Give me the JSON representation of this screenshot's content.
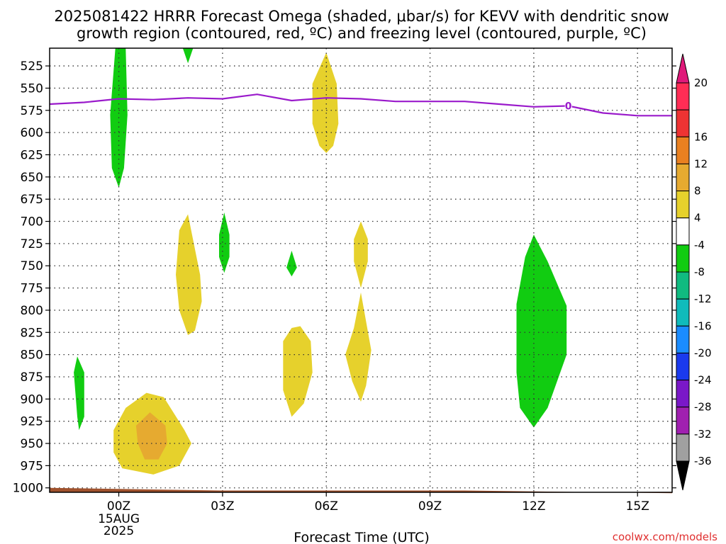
{
  "chart_data": {
    "type": "heatmap",
    "title_lines": [
      "2025081422 HRRR Forecast Omega (shaded, μbar/s) for KEVV with dendritic snow",
      "growth region (contoured, red, ºC) and freezing level (contoured, purple, ºC)"
    ],
    "xlabel": "Forecast Time (UTC)",
    "credit": "coolwx.com/models",
    "x_range_hours": [
      -2,
      16
    ],
    "y_range_mb": [
      1005,
      505
    ],
    "x_ticks": [
      {
        "hour": 0,
        "label": "00Z",
        "sub": [
          "15AUG",
          "2025"
        ]
      },
      {
        "hour": 3,
        "label": "03Z"
      },
      {
        "hour": 6,
        "label": "06Z"
      },
      {
        "hour": 9,
        "label": "09Z"
      },
      {
        "hour": 12,
        "label": "12Z"
      },
      {
        "hour": 15,
        "label": "15Z"
      }
    ],
    "y_ticks": [
      525,
      550,
      575,
      600,
      625,
      650,
      675,
      700,
      725,
      750,
      775,
      800,
      825,
      850,
      875,
      900,
      925,
      950,
      975,
      1000
    ],
    "colorbar": {
      "ticks": [
        "20",
        "16",
        "12",
        "8",
        "4",
        "-4",
        "-8",
        "-12",
        "-16",
        "-20",
        "-24",
        "-28",
        "-32",
        "-36"
      ],
      "colors_top_to_bottom": [
        "#ff2d55",
        "#ee3333",
        "#e98020",
        "#e6aa30",
        "#e6d12c",
        "#ffffff",
        "#11cc11",
        "#10bb80",
        "#10bbbb",
        "#1a8cff",
        "#1a3aee",
        "#7a18c8",
        "#a020b0",
        "#a0a0a0"
      ],
      "top_arrow_color": "#e01a7a",
      "bottom_arrow_color": "#000000"
    },
    "freezing_level": {
      "color": "#9a1acb",
      "label": "0",
      "label_hour": 13,
      "points": [
        [
          -2,
          568
        ],
        [
          -1,
          566
        ],
        [
          0,
          562
        ],
        [
          1,
          563
        ],
        [
          2,
          561
        ],
        [
          3,
          562
        ],
        [
          4,
          557
        ],
        [
          5,
          564
        ],
        [
          6,
          561
        ],
        [
          7,
          562
        ],
        [
          8,
          565
        ],
        [
          9,
          565
        ],
        [
          10,
          565
        ],
        [
          11,
          568
        ],
        [
          12,
          571
        ],
        [
          13,
          570
        ],
        [
          14,
          578
        ],
        [
          15,
          581
        ],
        [
          16,
          581
        ]
      ]
    },
    "ground": {
      "color": "#a0522d",
      "points": [
        [
          -2,
          1000
        ],
        [
          3,
          1003
        ],
        [
          10,
          1003
        ],
        [
          16,
          1006
        ]
      ]
    },
    "regions": [
      {
        "name": "upward-motion-00z",
        "color": "#11cc11",
        "points": [
          [
            -0.1,
            505
          ],
          [
            0.2,
            505
          ],
          [
            0.25,
            580
          ],
          [
            0.15,
            640
          ],
          [
            0,
            662
          ],
          [
            -0.2,
            640
          ],
          [
            -0.25,
            580
          ]
        ]
      },
      {
        "name": "upward-motion-02z-top",
        "color": "#11cc11",
        "points": [
          [
            1.85,
            505
          ],
          [
            2.15,
            505
          ],
          [
            2,
            522
          ]
        ]
      },
      {
        "name": "upward-motion-01z-low",
        "color": "#11cc11",
        "points": [
          [
            -1.2,
            852
          ],
          [
            -1,
            870
          ],
          [
            -1,
            920
          ],
          [
            -1.15,
            935
          ],
          [
            -1.2,
            920
          ],
          [
            -1.3,
            870
          ]
        ]
      },
      {
        "name": "upward-motion-03z",
        "color": "#11cc11",
        "points": [
          [
            3.05,
            690
          ],
          [
            3.2,
            715
          ],
          [
            3.2,
            740
          ],
          [
            3.05,
            758
          ],
          [
            2.9,
            740
          ],
          [
            2.9,
            715
          ]
        ]
      },
      {
        "name": "upward-motion-05z",
        "color": "#11cc11",
        "points": [
          [
            5,
            733
          ],
          [
            5.15,
            752
          ],
          [
            5,
            762
          ],
          [
            4.85,
            752
          ]
        ]
      },
      {
        "name": "upward-motion-12z",
        "color": "#11cc11",
        "points": [
          [
            12,
            715
          ],
          [
            12.4,
            745
          ],
          [
            12.95,
            795
          ],
          [
            12.95,
            850
          ],
          [
            12.4,
            910
          ],
          [
            12,
            932
          ],
          [
            11.6,
            910
          ],
          [
            11.5,
            870
          ],
          [
            11.5,
            793
          ],
          [
            11.75,
            740
          ]
        ]
      },
      {
        "name": "downward-motion-06z-top",
        "color": "#e6d12c",
        "points": [
          [
            6,
            510
          ],
          [
            6.3,
            545
          ],
          [
            6.35,
            590
          ],
          [
            6.2,
            615
          ],
          [
            6,
            623
          ],
          [
            5.8,
            615
          ],
          [
            5.6,
            590
          ],
          [
            5.6,
            545
          ]
        ]
      },
      {
        "name": "downward-motion-02z",
        "color": "#e6d12c",
        "points": [
          [
            2,
            692
          ],
          [
            2.35,
            760
          ],
          [
            2.4,
            790
          ],
          [
            2.2,
            823
          ],
          [
            2,
            828
          ],
          [
            1.75,
            800
          ],
          [
            1.65,
            760
          ],
          [
            1.75,
            710
          ]
        ]
      },
      {
        "name": "downward-motion-07z-upper",
        "color": "#e6d12c",
        "points": [
          [
            7,
            700
          ],
          [
            7.2,
            720
          ],
          [
            7.2,
            745
          ],
          [
            7,
            775
          ],
          [
            6.8,
            745
          ],
          [
            6.8,
            720
          ]
        ]
      },
      {
        "name": "downward-motion-07z-lower",
        "color": "#e6d12c",
        "points": [
          [
            7,
            780
          ],
          [
            7.3,
            845
          ],
          [
            7.15,
            885
          ],
          [
            7,
            903
          ],
          [
            6.75,
            880
          ],
          [
            6.55,
            850
          ],
          [
            6.8,
            820
          ]
        ]
      },
      {
        "name": "downward-motion-05z",
        "color": "#e6d12c",
        "points": [
          [
            5.25,
            818
          ],
          [
            5.55,
            835
          ],
          [
            5.6,
            870
          ],
          [
            5.35,
            905
          ],
          [
            5,
            920
          ],
          [
            4.75,
            890
          ],
          [
            4.75,
            835
          ],
          [
            5,
            820
          ]
        ]
      },
      {
        "name": "downward-motion-01z",
        "color": "#e6d12c",
        "points": [
          [
            0.8,
            893
          ],
          [
            1.3,
            898
          ],
          [
            1.9,
            935
          ],
          [
            2.1,
            950
          ],
          [
            1.75,
            975
          ],
          [
            1,
            985
          ],
          [
            0.1,
            978
          ],
          [
            -0.15,
            960
          ],
          [
            -0.15,
            935
          ],
          [
            0.2,
            910
          ]
        ]
      },
      {
        "name": "downward-motion-01z-core",
        "color": "#e6aa30",
        "points": [
          [
            0.9,
            915
          ],
          [
            1.35,
            930
          ],
          [
            1.4,
            950
          ],
          [
            1.15,
            968
          ],
          [
            0.75,
            968
          ],
          [
            0.55,
            950
          ],
          [
            0.5,
            930
          ]
        ]
      }
    ]
  }
}
